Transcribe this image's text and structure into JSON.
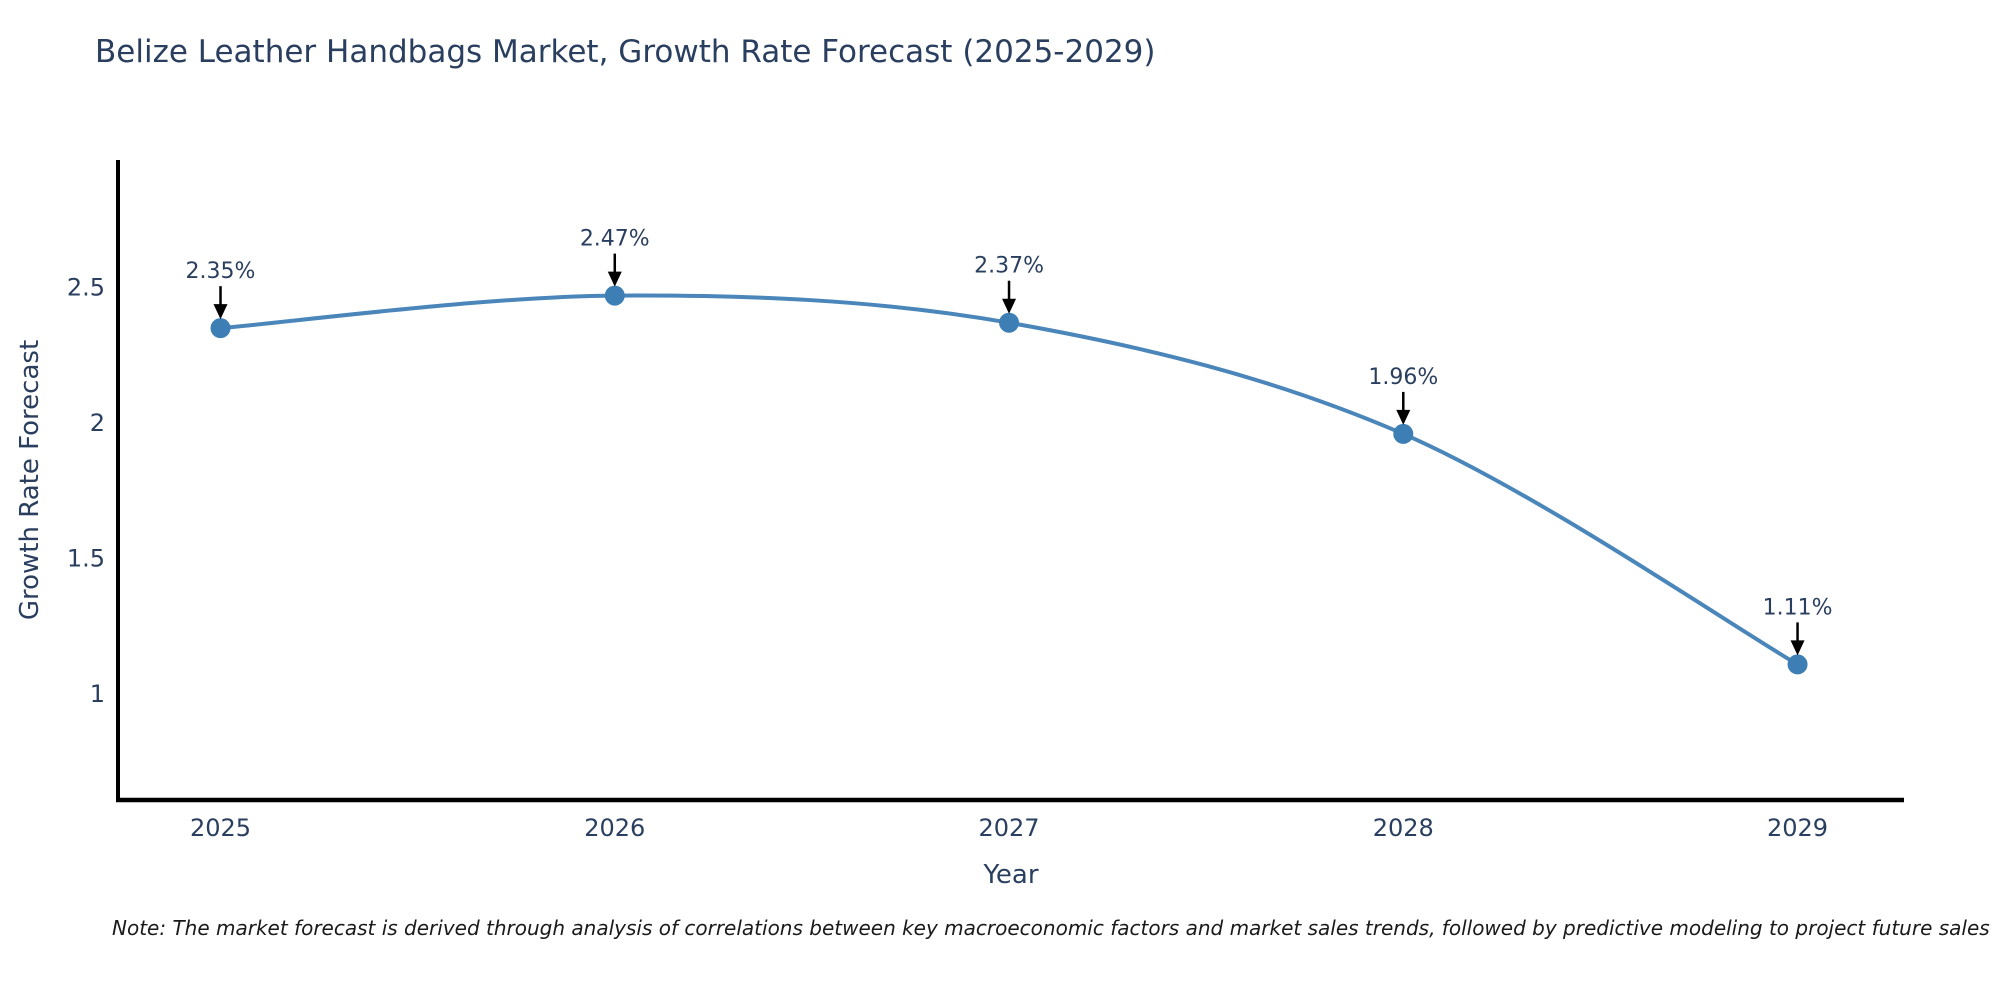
{
  "page": {
    "note": "Note: The market forecast is derived through analysis of correlations between key macroeconomic factors and market sales trends, followed by predictive modeling to project future sales"
  },
  "chart_data": {
    "type": "line",
    "title": "Belize Leather Handbags Market, Growth Rate Forecast (2025-2029)",
    "xlabel": "Year",
    "ylabel": "Growth Rate Forecast",
    "x": [
      2025,
      2026,
      2027,
      2028,
      2029
    ],
    "values": [
      2.35,
      2.47,
      2.37,
      1.96,
      1.11
    ],
    "point_labels": [
      "2.35%",
      "2.47%",
      "2.37%",
      "1.96%",
      "1.11%"
    ],
    "xticks": [
      2025,
      2026,
      2027,
      2028,
      2029
    ],
    "xtick_labels": [
      "2025",
      "2026",
      "2027",
      "2028",
      "2029"
    ],
    "yticks": [
      1,
      1.5,
      2,
      2.5
    ],
    "ytick_labels": [
      "1",
      "1.5",
      "2",
      "2.5"
    ],
    "xlim": [
      2024.74,
      2029.27
    ],
    "ylim": [
      0.61,
      2.97
    ],
    "grid": false,
    "legend": "none",
    "line_shape": "spline",
    "colors": {
      "line": "#4a86ba",
      "marker": "#3d7fb5",
      "axis": "#000000",
      "annotation_arrow": "#000000",
      "text": "#2a3f5f"
    }
  }
}
